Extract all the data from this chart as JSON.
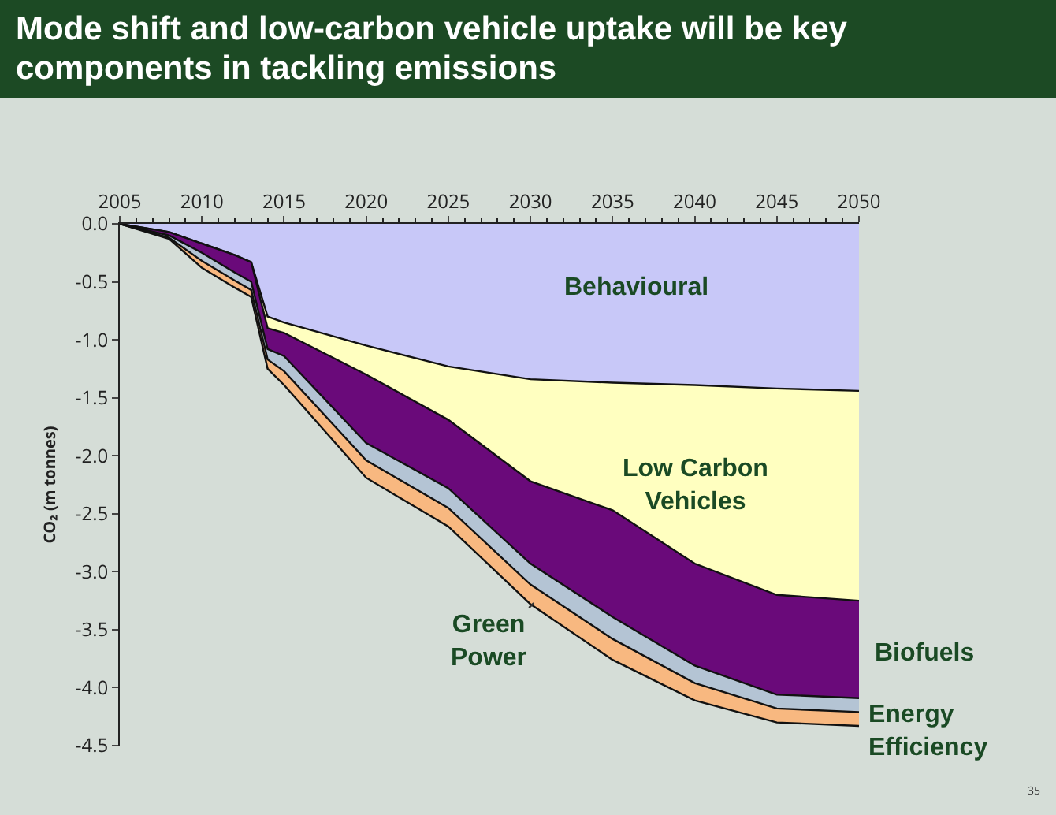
{
  "chart_data": {
    "type": "area",
    "stacked": true,
    "title": "Mode shift and low-carbon vehicle uptake will be key components in tackling emissions",
    "ylabel": "CO₂ (m tonnes)",
    "x": [
      2005,
      2008,
      2010,
      2012,
      2013,
      2014,
      2015,
      2020,
      2025,
      2030,
      2035,
      2040,
      2045,
      2050
    ],
    "series": [
      {
        "name": "Behavioural",
        "color": "#c8c8f8",
        "values": [
          0,
          -0.07,
          -0.17,
          -0.27,
          -0.33,
          -0.8,
          -0.85,
          -1.05,
          -1.23,
          -1.34,
          -1.37,
          -1.39,
          -1.42,
          -1.44
        ]
      },
      {
        "name": "Low Carbon Vehicles",
        "color": "#ffffc0",
        "values": [
          0,
          0,
          0,
          0,
          0,
          -0.1,
          -0.09,
          -0.25,
          -0.46,
          -0.88,
          -1.1,
          -1.54,
          -1.78,
          -1.81
        ]
      },
      {
        "name": "Biofuels",
        "color": "#6a0a7a",
        "values": [
          0,
          -0.03,
          -0.08,
          -0.15,
          -0.17,
          -0.18,
          -0.2,
          -0.59,
          -0.59,
          -0.71,
          -0.92,
          -0.88,
          -0.86,
          -0.84
        ]
      },
      {
        "name": "Energy Efficiency",
        "color": "#b4c4d4",
        "values": [
          0,
          -0.02,
          -0.07,
          -0.07,
          -0.07,
          -0.09,
          -0.13,
          -0.15,
          -0.17,
          -0.18,
          -0.19,
          -0.15,
          -0.12,
          -0.12
        ]
      },
      {
        "name": "Green Power",
        "color": "#f8b880",
        "values": [
          0,
          -0.01,
          -0.06,
          -0.06,
          -0.06,
          -0.08,
          -0.12,
          -0.15,
          -0.16,
          -0.17,
          -0.18,
          -0.15,
          -0.12,
          -0.12
        ]
      }
    ],
    "xlim": [
      2005,
      2050
    ],
    "xticks": [
      2005,
      2010,
      2015,
      2020,
      2025,
      2030,
      2035,
      2040,
      2045,
      2050
    ],
    "ylim": [
      -4.5,
      0
    ],
    "yticks": [
      {
        "value": 0,
        "label": "0.0"
      },
      -0.5,
      {
        "value": -1,
        "label": "-1.0"
      },
      -1.5,
      {
        "value": -2,
        "label": "-2.0"
      },
      -2.5,
      {
        "value": -3,
        "label": "-3.0"
      },
      -3.5,
      {
        "value": -4,
        "label": "-4.0"
      },
      -4.5
    ],
    "grid": false,
    "legend": false,
    "annotations": [
      "35"
    ]
  }
}
